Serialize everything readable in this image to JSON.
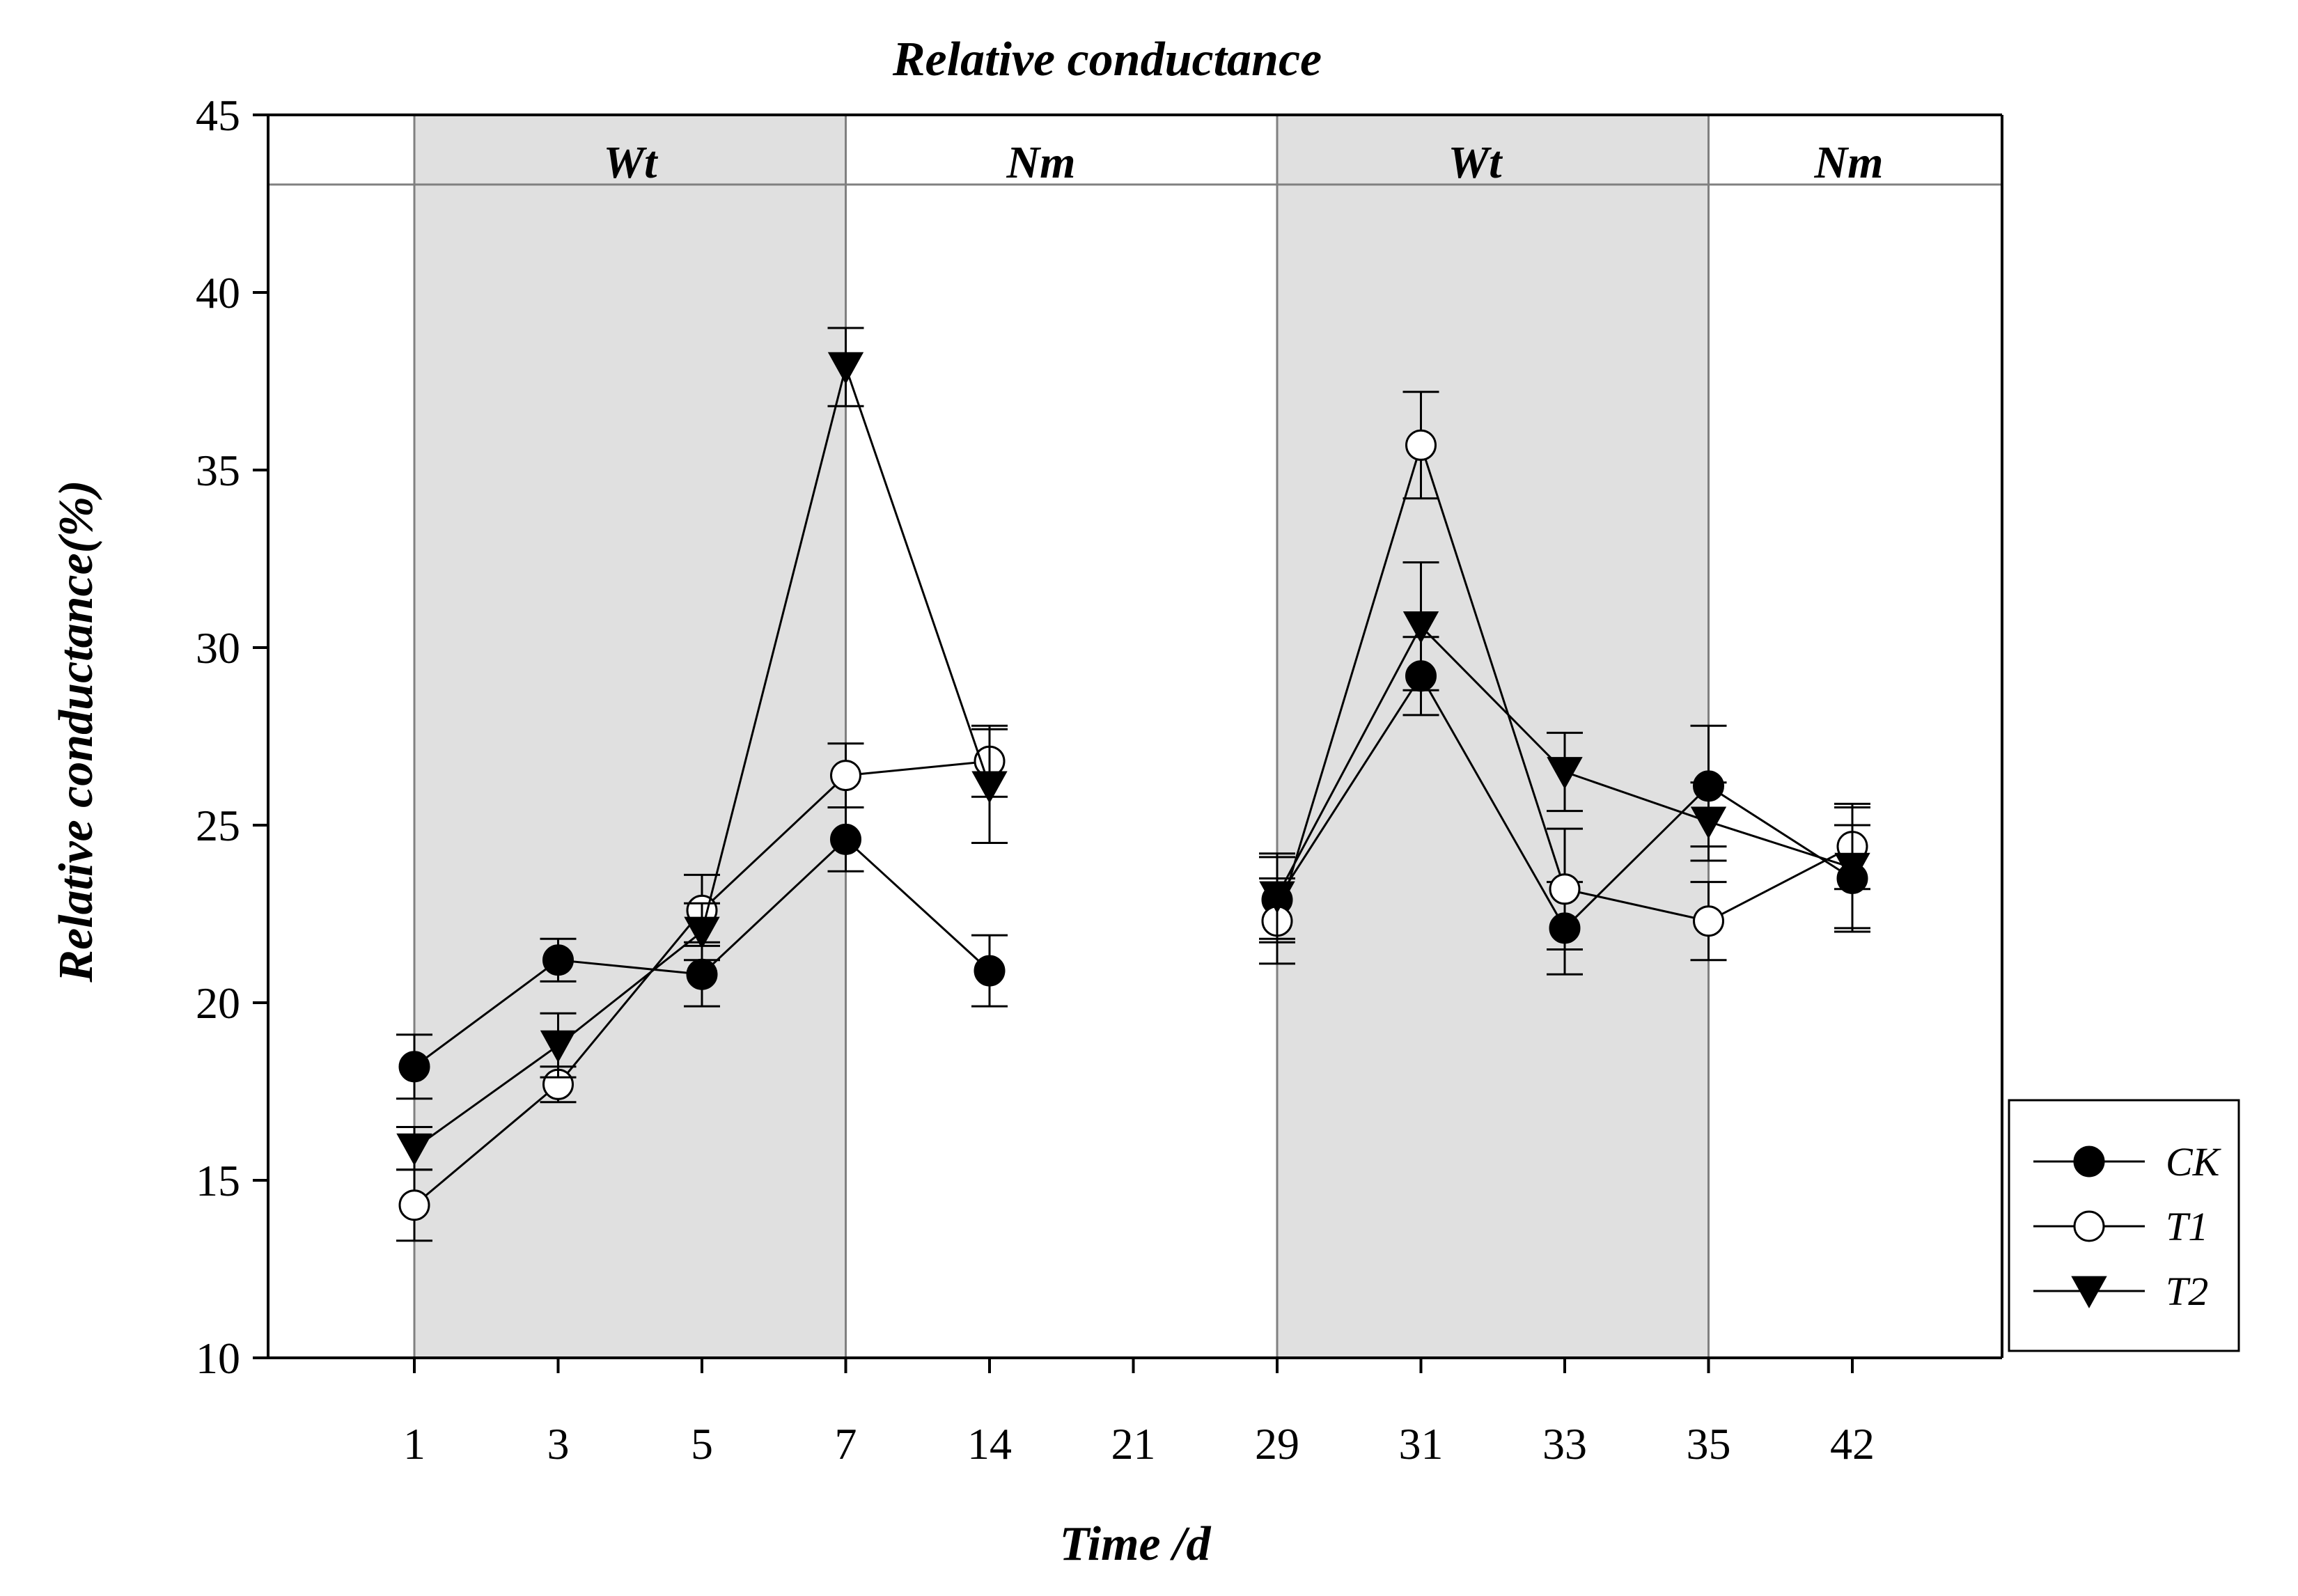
{
  "chart_data": {
    "type": "line",
    "title": "Relative conductance",
    "xlabel": "Time /d",
    "ylabel": "Relative conductance(%)",
    "ylim": [
      10,
      45
    ],
    "yticks": [
      10,
      15,
      20,
      25,
      30,
      35,
      40,
      45
    ],
    "categories": [
      "1",
      "3",
      "5",
      "7",
      "14",
      "21",
      "29",
      "31",
      "33",
      "35",
      "42"
    ],
    "grid": false,
    "legend_position": "right",
    "bands": [
      {
        "label": "Wt",
        "from": "1",
        "to": "7",
        "shaded": true,
        "color": "#e0e0e0"
      },
      {
        "label": "Nm",
        "from": "7",
        "to": "21",
        "shaded": false
      },
      {
        "label": "Wt",
        "from": "29",
        "to": "35",
        "shaded": true,
        "color": "#e0e0e0"
      },
      {
        "label": "Nm",
        "from": "35",
        "to": "42",
        "shaded": false
      }
    ],
    "series": [
      {
        "name": "CK",
        "marker": "filled-circle",
        "values": [
          18.2,
          21.2,
          20.8,
          24.6,
          20.9,
          null,
          22.9,
          29.2,
          22.1,
          26.1,
          23.5
        ],
        "errors": [
          0.9,
          0.6,
          0.9,
          0.9,
          1.0,
          null,
          1.2,
          1.1,
          1.3,
          1.7,
          1.5
        ]
      },
      {
        "name": "T1",
        "marker": "open-circle",
        "values": [
          14.3,
          17.7,
          22.6,
          26.4,
          26.8,
          null,
          22.3,
          35.7,
          23.2,
          22.3,
          24.4
        ],
        "errors": [
          1.0,
          0.5,
          1.0,
          0.9,
          1.0,
          null,
          1.2,
          1.5,
          1.7,
          1.1,
          1.2
        ]
      },
      {
        "name": "T2",
        "marker": "filled-triangle-down",
        "values": [
          15.9,
          18.8,
          22.0,
          37.9,
          26.1,
          null,
          23.0,
          30.6,
          26.5,
          25.1,
          23.8
        ],
        "errors": [
          0.6,
          0.9,
          0.8,
          1.1,
          1.6,
          null,
          1.2,
          1.8,
          1.1,
          1.1,
          1.7
        ]
      }
    ]
  }
}
